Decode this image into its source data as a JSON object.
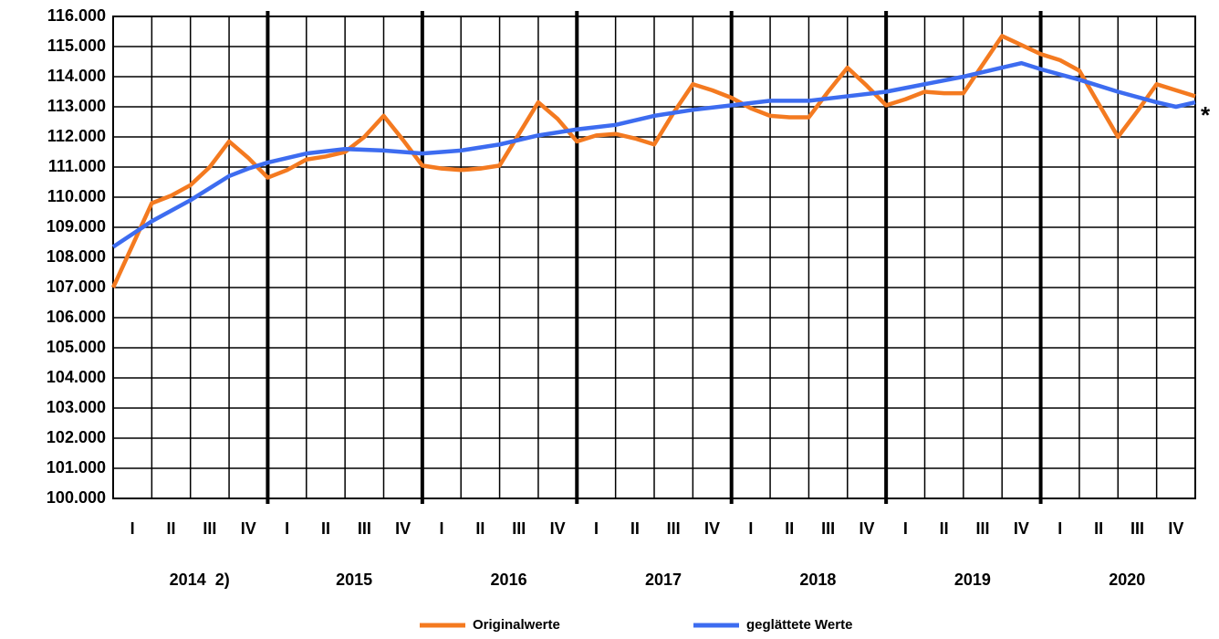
{
  "chart_data": {
    "type": "line",
    "categories": [
      "I",
      "II",
      "III",
      "IV",
      "I",
      "II",
      "III",
      "IV",
      "I",
      "II",
      "III",
      "IV",
      "I",
      "II",
      "III",
      "IV",
      "I",
      "II",
      "III",
      "IV",
      "I",
      "II",
      "III",
      "IV",
      "I",
      "II",
      "III",
      "IV"
    ],
    "years": [
      "2014  2)",
      "2015",
      "2016",
      "2017",
      "2018",
      "2019",
      "2020"
    ],
    "annotation": "*",
    "xlim": [
      0,
      28
    ],
    "ylim": [
      100000,
      116000
    ],
    "yticks": [
      {
        "value": 100000,
        "label": "100.000"
      },
      {
        "value": 101000,
        "label": "101.000"
      },
      {
        "value": 102000,
        "label": "102.000"
      },
      {
        "value": 103000,
        "label": "103.000"
      },
      {
        "value": 104000,
        "label": "104.000"
      },
      {
        "value": 105000,
        "label": "105.000"
      },
      {
        "value": 106000,
        "label": "106.000"
      },
      {
        "value": 107000,
        "label": "107.000"
      },
      {
        "value": 108000,
        "label": "108.000"
      },
      {
        "value": 109000,
        "label": "109.000"
      },
      {
        "value": 110000,
        "label": "110.000"
      },
      {
        "value": 111000,
        "label": "111.000"
      },
      {
        "value": 112000,
        "label": "112.000"
      },
      {
        "value": 113000,
        "label": "113.000"
      },
      {
        "value": 114000,
        "label": "114.000"
      },
      {
        "value": 115000,
        "label": "115.000"
      },
      {
        "value": 116000,
        "label": "116.000"
      }
    ],
    "grid": true,
    "series": [
      {
        "name": "Originalwerte",
        "color": "#f47a20",
        "x": [
          0,
          0.5,
          1,
          1.5,
          2,
          2.5,
          3,
          3.5,
          4,
          4.5,
          5,
          5.5,
          6,
          6.5,
          7,
          7.5,
          8,
          8.5,
          9,
          9.5,
          10,
          10.5,
          11,
          11.5,
          12,
          12.5,
          13,
          13.5,
          14,
          14.5,
          15,
          15.5,
          16,
          16.5,
          17,
          17.5,
          18,
          18.5,
          19,
          19.5,
          20,
          20.5,
          21,
          21.5,
          22,
          22.5,
          23,
          23.5,
          24,
          24.5,
          25,
          25.5,
          26,
          26.5,
          27,
          27.5,
          28
        ],
        "values": [
          107000,
          108400,
          109800,
          110050,
          110400,
          111000,
          111850,
          111300,
          110650,
          110900,
          111250,
          111350,
          111500,
          112000,
          112700,
          111900,
          111050,
          110950,
          110900,
          110950,
          111050,
          112100,
          113150,
          112600,
          111850,
          112050,
          112100,
          111950,
          111750,
          112800,
          113750,
          113550,
          113300,
          112950,
          112700,
          112650,
          112650,
          113500,
          114300,
          113700,
          113050,
          113250,
          113500,
          113450,
          113450,
          114400,
          115350,
          115050,
          114750,
          114550,
          114200,
          113100,
          112000,
          112850,
          113750,
          113550,
          113350
        ]
      },
      {
        "name": "geglättete Werte",
        "color": "#3d6cf0",
        "x": [
          0,
          1,
          2,
          3,
          3.5,
          4,
          5,
          6,
          7,
          8,
          9,
          10,
          11,
          12,
          13,
          14,
          15,
          16,
          17,
          18,
          19,
          20,
          21,
          22,
          23,
          23.5,
          24,
          25,
          26,
          27,
          27.5,
          28
        ],
        "values": [
          108350,
          109200,
          109900,
          110700,
          110950,
          111150,
          111450,
          111600,
          111550,
          111450,
          111550,
          111750,
          112050,
          112250,
          112400,
          112700,
          112900,
          113050,
          113200,
          113200,
          113350,
          113500,
          113750,
          114000,
          114300,
          114450,
          114250,
          113900,
          113500,
          113150,
          113000,
          113150
        ]
      }
    ]
  }
}
